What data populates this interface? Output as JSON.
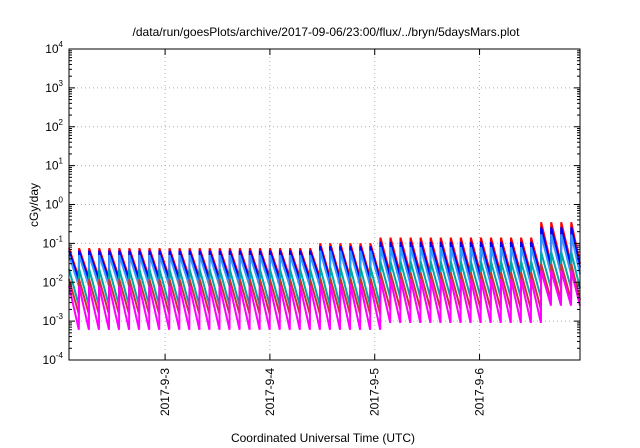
{
  "chart_data": {
    "type": "line",
    "title": "/data/run/goesPlots/archive/2017-09-06/23:00/flux/../bryn/5daysMars.plot",
    "xlabel": "Coordinated Universal Time (UTC)",
    "ylabel": "cGy/day",
    "y_scale": "log",
    "ylim": [
      0.0001,
      10000
    ],
    "y_ticks": [
      {
        "base": "10",
        "exp": "-4"
      },
      {
        "base": "10",
        "exp": "-3"
      },
      {
        "base": "10",
        "exp": "-2"
      },
      {
        "base": "10",
        "exp": "-1"
      },
      {
        "base": "10",
        "exp": "0"
      },
      {
        "base": "10",
        "exp": "1"
      },
      {
        "base": "10",
        "exp": "2"
      },
      {
        "base": "10",
        "exp": "3"
      },
      {
        "base": "10",
        "exp": "4"
      }
    ],
    "xlim": [
      "2017-09-02T02:00",
      "2017-09-06T23:00"
    ],
    "x_ticks": [
      "2017-9-3",
      "2017-9-4",
      "2017-9-5",
      "2017-9-6"
    ],
    "grid": true,
    "sawtooth_period_hours": 2.3,
    "series": [
      {
        "color": "#ff0000",
        "segments": [
          {
            "from": "2017-09-02T02:00",
            "to": "2017-09-04T10:00",
            "peak": 0.075,
            "trough": 0.013
          },
          {
            "from": "2017-09-04T10:00",
            "to": "2017-09-05T00:00",
            "peak": 0.1,
            "trough": 0.013
          },
          {
            "from": "2017-09-05T00:00",
            "to": "2017-09-06T13:00",
            "peak": 0.14,
            "trough": 0.016
          },
          {
            "from": "2017-09-06T13:00",
            "to": "2017-09-06T23:00",
            "peak": 0.35,
            "trough": 0.03
          }
        ]
      },
      {
        "color": "#0000ff",
        "segments": [
          {
            "from": "2017-09-02T02:00",
            "to": "2017-09-04T10:00",
            "peak": 0.065,
            "trough": 0.011
          },
          {
            "from": "2017-09-04T10:00",
            "to": "2017-09-05T00:00",
            "peak": 0.085,
            "trough": 0.011
          },
          {
            "from": "2017-09-05T00:00",
            "to": "2017-09-06T13:00",
            "peak": 0.11,
            "trough": 0.013
          },
          {
            "from": "2017-09-06T13:00",
            "to": "2017-09-06T23:00",
            "peak": 0.26,
            "trough": 0.024
          }
        ]
      },
      {
        "color": "#3399ff",
        "segments": [
          {
            "from": "2017-09-02T02:00",
            "to": "2017-09-04T10:00",
            "peak": 0.05,
            "trough": 0.008
          },
          {
            "from": "2017-09-04T10:00",
            "to": "2017-09-05T00:00",
            "peak": 0.065,
            "trough": 0.008
          },
          {
            "from": "2017-09-05T00:00",
            "to": "2017-09-06T13:00",
            "peak": 0.08,
            "trough": 0.009
          },
          {
            "from": "2017-09-06T13:00",
            "to": "2017-09-06T23:00",
            "peak": 0.17,
            "trough": 0.016
          }
        ]
      },
      {
        "color": "#00aaaa",
        "segments": [
          {
            "from": "2017-09-02T02:00",
            "to": "2017-09-04T10:00",
            "peak": 0.022,
            "trough": 0.0025
          },
          {
            "from": "2017-09-04T10:00",
            "to": "2017-09-05T00:00",
            "peak": 0.025,
            "trough": 0.0025
          },
          {
            "from": "2017-09-05T00:00",
            "to": "2017-09-06T13:00",
            "peak": 0.035,
            "trough": 0.004
          },
          {
            "from": "2017-09-06T13:00",
            "to": "2017-09-06T23:00",
            "peak": 0.06,
            "trough": 0.007
          }
        ]
      },
      {
        "color": "#cc3333",
        "segments": [
          {
            "from": "2017-09-02T02:00",
            "to": "2017-09-04T10:00",
            "peak": 0.012,
            "trough": 0.0015
          },
          {
            "from": "2017-09-04T10:00",
            "to": "2017-09-05T00:00",
            "peak": 0.013,
            "trough": 0.0015
          },
          {
            "from": "2017-09-05T00:00",
            "to": "2017-09-06T13:00",
            "peak": 0.018,
            "trough": 0.002
          },
          {
            "from": "2017-09-06T13:00",
            "to": "2017-09-06T23:00",
            "peak": 0.03,
            "trough": 0.0035
          }
        ]
      },
      {
        "color": "#ff00ff",
        "segments": [
          {
            "from": "2017-09-02T02:00",
            "to": "2017-09-04T10:00",
            "peak": 0.008,
            "trough": 0.0006
          },
          {
            "from": "2017-09-04T10:00",
            "to": "2017-09-05T00:00",
            "peak": 0.009,
            "trough": 0.0006
          },
          {
            "from": "2017-09-05T00:00",
            "to": "2017-09-06T13:00",
            "peak": 0.012,
            "trough": 0.0009
          },
          {
            "from": "2017-09-06T13:00",
            "to": "2017-09-06T23:00",
            "peak": 0.02,
            "trough": 0.0025
          }
        ]
      }
    ]
  }
}
